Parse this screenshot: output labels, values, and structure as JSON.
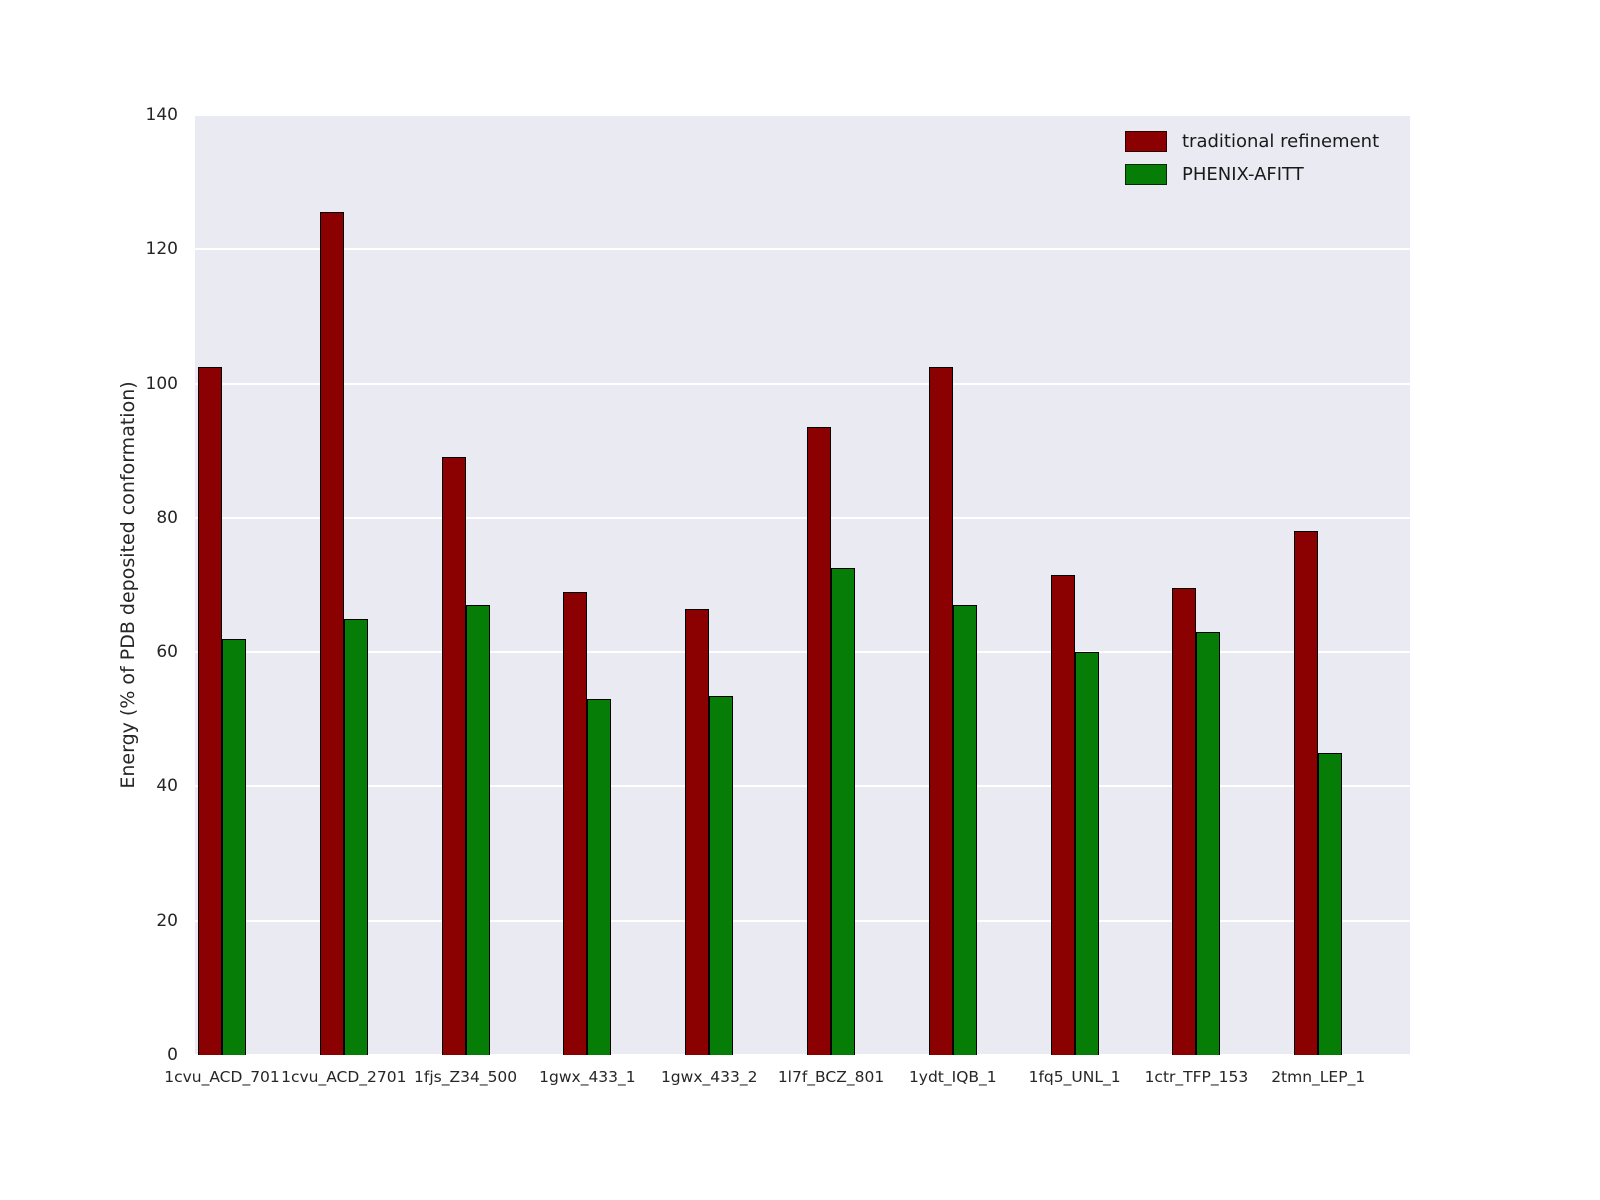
{
  "chart_data": {
    "type": "bar",
    "title": "",
    "xlabel": "",
    "ylabel": "Energy (% of PDB deposited conformation)",
    "ylim": [
      0,
      140
    ],
    "yticks": [
      0,
      20,
      40,
      60,
      80,
      100,
      120,
      140
    ],
    "grid": true,
    "legend_position": "upper right",
    "plot_bg_color": "#eaeaf2",
    "grid_color": "#ffffff",
    "bar_edge_color": "#000000",
    "categories": [
      "1cvu_ACD_701",
      "1cvu_ACD_2701",
      "1fjs_Z34_500",
      "1gwx_433_1",
      "1gwx_433_2",
      "1l7f_BCZ_801",
      "1ydt_IQB_1",
      "1fq5_UNL_1",
      "1ctr_TFP_153",
      "2tmn_LEP_1"
    ],
    "series": [
      {
        "name": "traditional refinement",
        "color": "#8b0000",
        "values": [
          102.5,
          125.5,
          89,
          69,
          66.5,
          93.5,
          102.5,
          71.5,
          69.5,
          78
        ]
      },
      {
        "name": "PHENIX-AFITT",
        "color": "#067d06",
        "values": [
          62,
          65,
          67,
          53,
          53.5,
          72.5,
          67,
          60,
          63,
          45
        ]
      }
    ]
  }
}
